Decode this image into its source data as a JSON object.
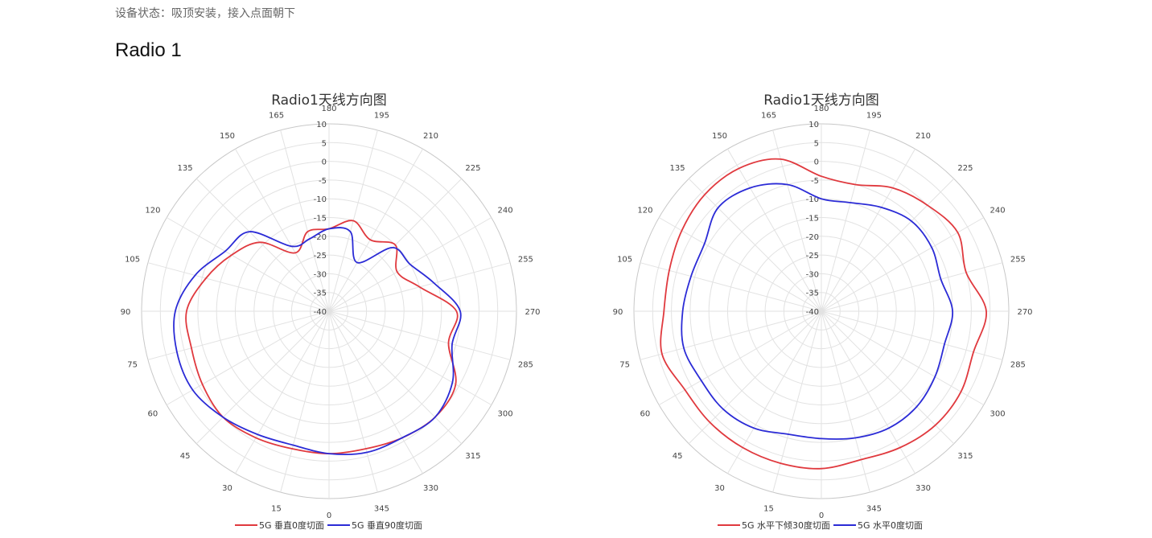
{
  "page": {
    "status_text": "设备状态：吸顶安装，接入点面朝下",
    "section_title": "Radio 1"
  },
  "chart_data": [
    {
      "type": "polar-line",
      "title": "Radio1天线方向图",
      "angle_ticks": [
        "180",
        "195",
        "210",
        "225",
        "240",
        "255",
        "270",
        "285",
        "300",
        "315",
        "330",
        "345",
        "0",
        "15",
        "30",
        "45",
        "60",
        "75",
        "90",
        "105",
        "120",
        "135",
        "150",
        "165"
      ],
      "radial_ticks": [
        "10",
        "5",
        "0",
        "-5",
        "-10",
        "-15",
        "-20",
        "-25",
        "-30",
        "-35",
        "-40"
      ],
      "rlim": [
        -40,
        10
      ],
      "grid": true,
      "legend_position": "bottom",
      "series": [
        {
          "name": "5G 垂直0度切面",
          "color": "#e0393e",
          "angles": [
            0,
            15,
            30,
            45,
            60,
            75,
            90,
            105,
            120,
            135,
            150,
            165,
            180,
            195,
            210,
            225,
            240,
            255,
            270,
            285,
            300,
            315,
            330,
            345
          ],
          "values": [
            -2,
            -2,
            -1,
            0,
            -1,
            -2,
            -2,
            -6,
            -10,
            -14,
            -22,
            -18,
            -18,
            -15,
            -18,
            -15,
            -19,
            -15,
            -6,
            -7,
            -1,
            0,
            -1,
            -2
          ]
        },
        {
          "name": "5G 垂直90度切面",
          "color": "#2b2bd6",
          "angles": [
            0,
            15,
            30,
            45,
            60,
            75,
            90,
            105,
            120,
            135,
            150,
            165,
            180,
            195,
            210,
            225,
            240,
            255,
            270,
            285,
            300,
            315,
            330,
            345
          ],
          "values": [
            -2,
            -3,
            -2,
            0,
            2,
            2,
            1,
            -3,
            -8,
            -10,
            -20,
            -20,
            -18,
            -18,
            -25,
            -16,
            -15,
            -11,
            -5,
            -6,
            -2,
            0,
            -1,
            -1
          ]
        }
      ]
    },
    {
      "type": "polar-line",
      "title": "Radio1天线方向图",
      "angle_ticks": [
        "180",
        "195",
        "210",
        "225",
        "240",
        "255",
        "270",
        "285",
        "300",
        "315",
        "330",
        "345",
        "0",
        "15",
        "30",
        "45",
        "60",
        "75",
        "90",
        "105",
        "120",
        "135",
        "150",
        "165"
      ],
      "radial_ticks": [
        "10",
        "5",
        "0",
        "-5",
        "-10",
        "-15",
        "-20",
        "-25",
        "-30",
        "-35",
        "-40"
      ],
      "rlim": [
        -40,
        10
      ],
      "grid": true,
      "legend_position": "bottom",
      "series": [
        {
          "name": "5G 水平下倾30度切面",
          "color": "#e0393e",
          "angles": [
            0,
            15,
            30,
            45,
            60,
            75,
            90,
            105,
            120,
            135,
            150,
            165,
            180,
            195,
            210,
            225,
            240,
            255,
            270,
            285,
            300,
            315,
            330,
            345
          ],
          "values": [
            2,
            2,
            2,
            2,
            2,
            4,
            2,
            2,
            3,
            4,
            4,
            2,
            -4,
            -5,
            -2,
            0,
            2,
            0,
            4,
            2,
            3,
            3,
            2,
            1
          ]
        },
        {
          "name": "5G 水平0度切面",
          "color": "#2b2bd6",
          "angles": [
            0,
            15,
            30,
            45,
            60,
            75,
            90,
            105,
            120,
            135,
            150,
            165,
            180,
            195,
            210,
            225,
            240,
            255,
            270,
            285,
            300,
            315,
            330,
            345
          ],
          "values": [
            -6,
            -6,
            -4,
            -3,
            -3,
            -2,
            -3,
            -4,
            -4,
            -1,
            -2,
            -5,
            -10,
            -10,
            -8,
            -6,
            -6,
            -7,
            -5,
            -6,
            -5,
            -4,
            -4,
            -5
          ]
        }
      ]
    }
  ]
}
